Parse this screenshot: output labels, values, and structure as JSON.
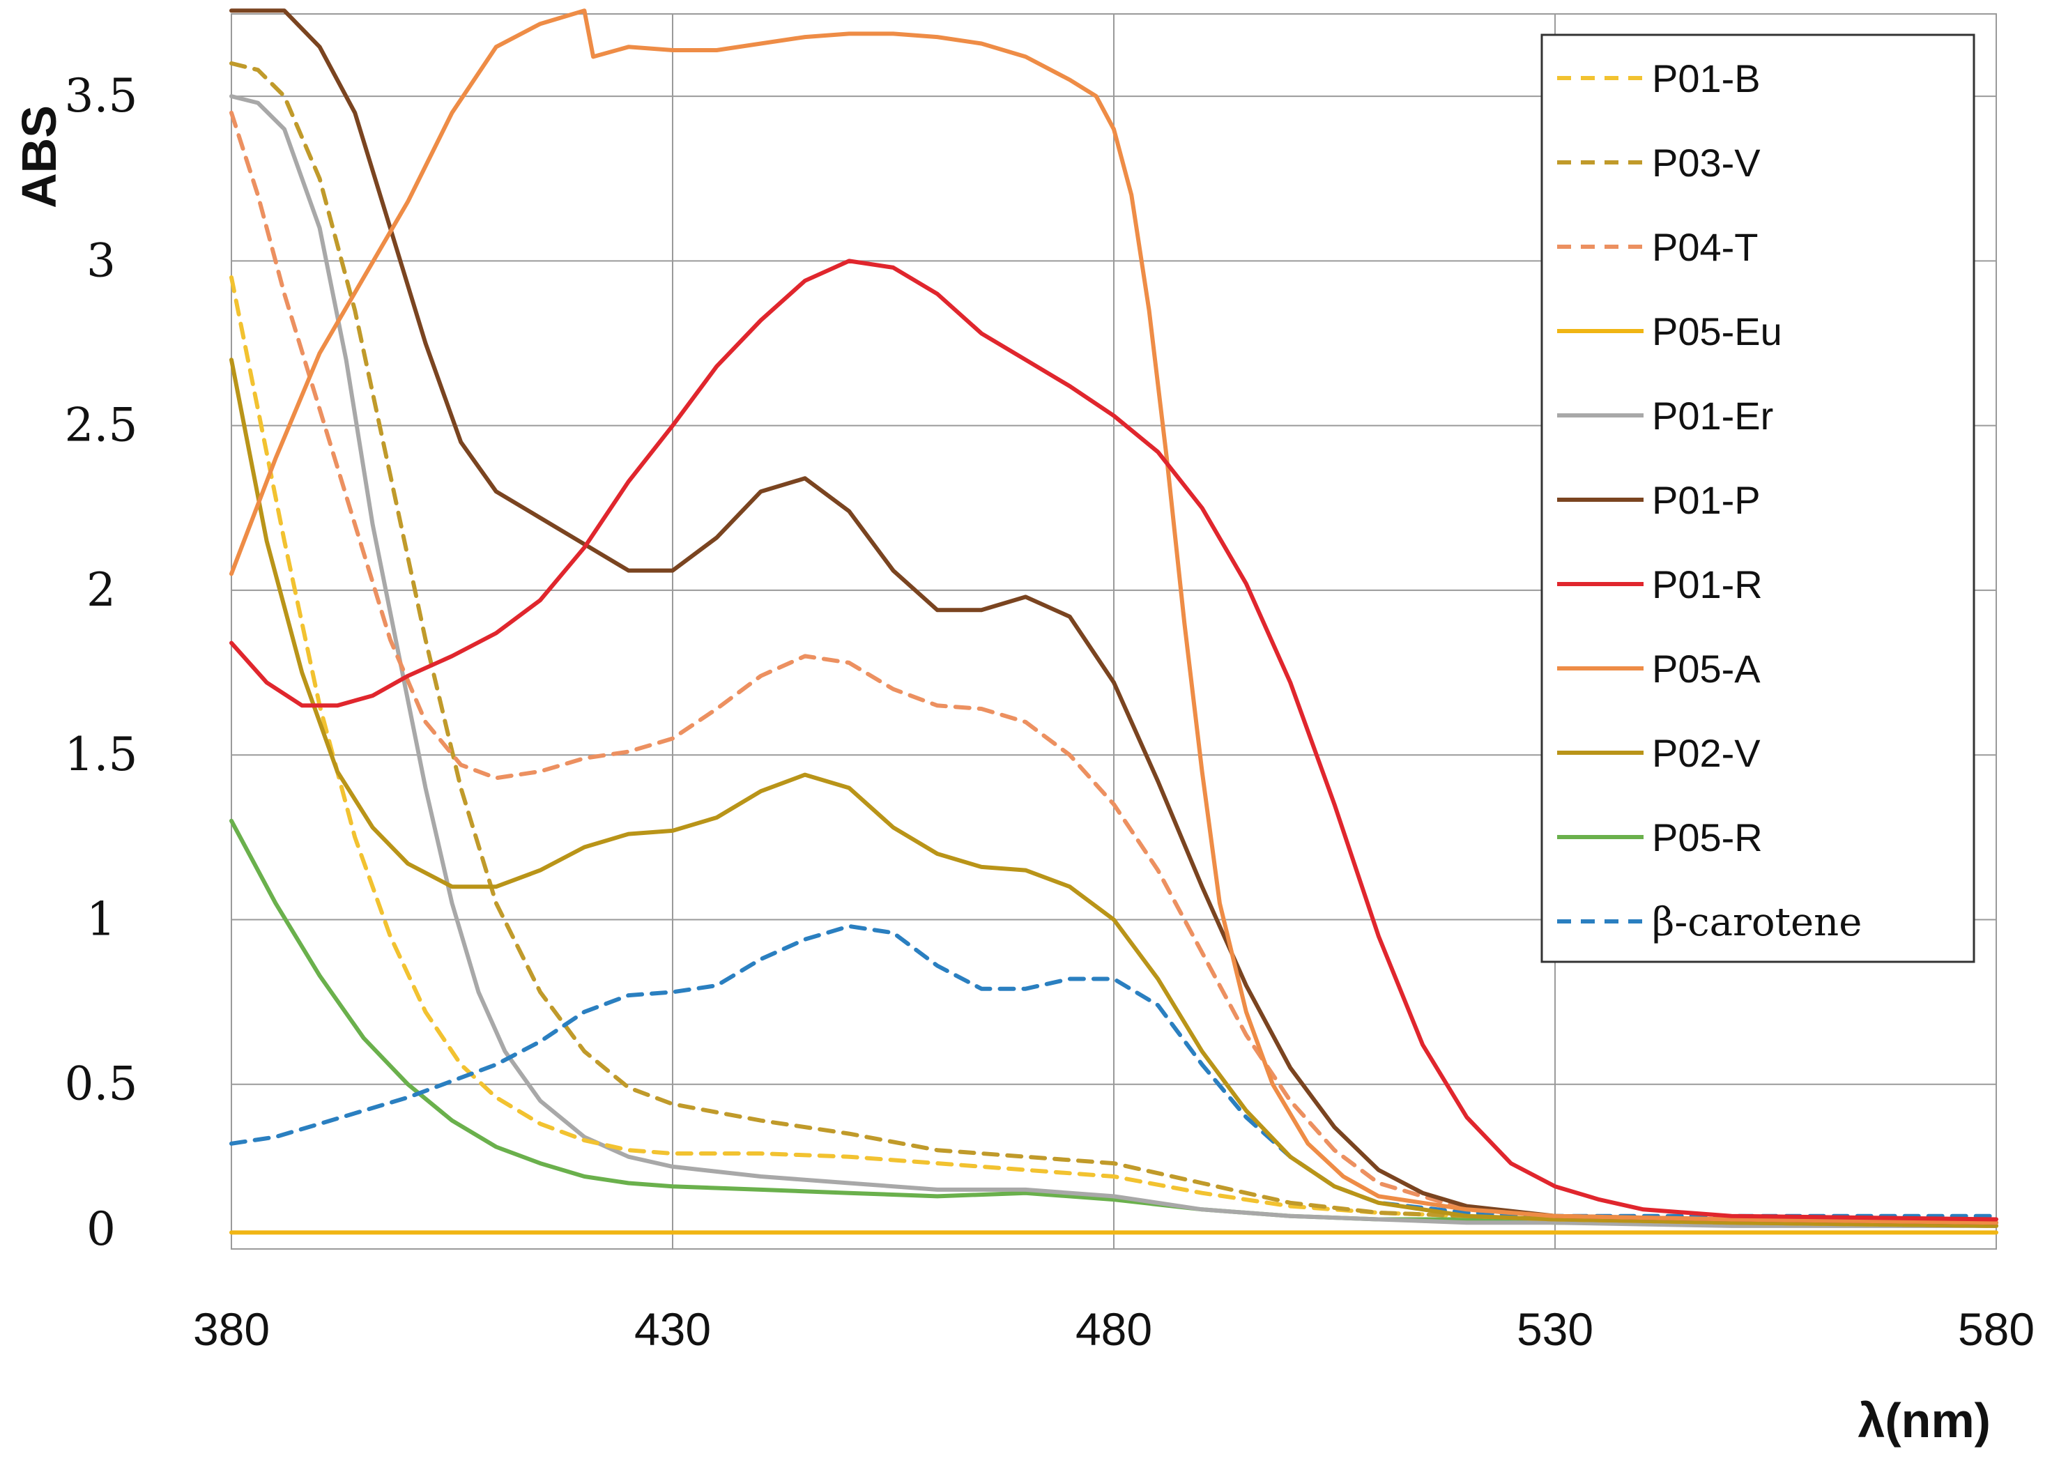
{
  "chart_data": {
    "type": "line",
    "title": "",
    "xlabel": "λ(nm)",
    "ylabel": "ABS",
    "xlim": [
      380,
      580
    ],
    "ylim": [
      0,
      3.75
    ],
    "x_ticks": [
      "380",
      "430",
      "480",
      "530",
      "580"
    ],
    "y_ticks": [
      "0",
      "0.5",
      "1",
      "1.5",
      "2",
      "2.5",
      "3",
      "3.5"
    ],
    "grid": true,
    "legend_position": "top-right",
    "series": [
      {
        "name": "P01-B",
        "color": "#f2c230",
        "dash": true,
        "points": [
          [
            380,
            2.95
          ],
          [
            383,
            2.55
          ],
          [
            386,
            2.15
          ],
          [
            390,
            1.65
          ],
          [
            394,
            1.25
          ],
          [
            398,
            0.95
          ],
          [
            402,
            0.72
          ],
          [
            406,
            0.56
          ],
          [
            410,
            0.46
          ],
          [
            415,
            0.38
          ],
          [
            420,
            0.33
          ],
          [
            425,
            0.3
          ],
          [
            430,
            0.29
          ],
          [
            440,
            0.29
          ],
          [
            450,
            0.28
          ],
          [
            460,
            0.26
          ],
          [
            470,
            0.24
          ],
          [
            480,
            0.22
          ],
          [
            490,
            0.17
          ],
          [
            500,
            0.13
          ],
          [
            510,
            0.11
          ],
          [
            520,
            0.1
          ],
          [
            530,
            0.09
          ],
          [
            550,
            0.08
          ],
          [
            580,
            0.07
          ]
        ]
      },
      {
        "name": "P03-V",
        "color": "#c09a2a",
        "dash": true,
        "points": [
          [
            380,
            3.6
          ],
          [
            383,
            3.58
          ],
          [
            386,
            3.5
          ],
          [
            390,
            3.25
          ],
          [
            394,
            2.85
          ],
          [
            398,
            2.35
          ],
          [
            402,
            1.85
          ],
          [
            406,
            1.4
          ],
          [
            410,
            1.05
          ],
          [
            415,
            0.78
          ],
          [
            420,
            0.6
          ],
          [
            425,
            0.49
          ],
          [
            430,
            0.44
          ],
          [
            440,
            0.39
          ],
          [
            450,
            0.35
          ],
          [
            460,
            0.3
          ],
          [
            470,
            0.28
          ],
          [
            480,
            0.26
          ],
          [
            490,
            0.2
          ],
          [
            500,
            0.14
          ],
          [
            510,
            0.11
          ],
          [
            520,
            0.1
          ],
          [
            530,
            0.09
          ],
          [
            550,
            0.08
          ],
          [
            580,
            0.07
          ]
        ]
      },
      {
        "name": "P04-T",
        "color": "#ec9060",
        "dash": true,
        "points": [
          [
            380,
            3.45
          ],
          [
            383,
            3.2
          ],
          [
            386,
            2.9
          ],
          [
            390,
            2.55
          ],
          [
            394,
            2.2
          ],
          [
            398,
            1.85
          ],
          [
            402,
            1.6
          ],
          [
            406,
            1.47
          ],
          [
            410,
            1.43
          ],
          [
            415,
            1.45
          ],
          [
            420,
            1.49
          ],
          [
            425,
            1.51
          ],
          [
            430,
            1.55
          ],
          [
            435,
            1.64
          ],
          [
            440,
            1.74
          ],
          [
            445,
            1.8
          ],
          [
            450,
            1.78
          ],
          [
            455,
            1.7
          ],
          [
            460,
            1.65
          ],
          [
            465,
            1.64
          ],
          [
            470,
            1.6
          ],
          [
            475,
            1.5
          ],
          [
            480,
            1.35
          ],
          [
            485,
            1.15
          ],
          [
            490,
            0.9
          ],
          [
            495,
            0.65
          ],
          [
            500,
            0.45
          ],
          [
            505,
            0.3
          ],
          [
            510,
            0.2
          ],
          [
            520,
            0.12
          ],
          [
            530,
            0.1
          ],
          [
            550,
            0.09
          ],
          [
            580,
            0.08
          ]
        ]
      },
      {
        "name": "P05-Eu",
        "color": "#f0b514",
        "dash": false,
        "points": [
          [
            380,
            0.05
          ],
          [
            580,
            0.05
          ]
        ]
      },
      {
        "name": "P01-Er",
        "color": "#a8a8a8",
        "dash": false,
        "points": [
          [
            380,
            3.5
          ],
          [
            383,
            3.48
          ],
          [
            386,
            3.4
          ],
          [
            390,
            3.1
          ],
          [
            393,
            2.7
          ],
          [
            396,
            2.2
          ],
          [
            399,
            1.8
          ],
          [
            402,
            1.4
          ],
          [
            405,
            1.05
          ],
          [
            408,
            0.78
          ],
          [
            411,
            0.6
          ],
          [
            415,
            0.45
          ],
          [
            420,
            0.34
          ],
          [
            425,
            0.28
          ],
          [
            430,
            0.25
          ],
          [
            440,
            0.22
          ],
          [
            450,
            0.2
          ],
          [
            460,
            0.18
          ],
          [
            470,
            0.18
          ],
          [
            480,
            0.16
          ],
          [
            490,
            0.12
          ],
          [
            500,
            0.1
          ],
          [
            510,
            0.09
          ],
          [
            520,
            0.08
          ],
          [
            530,
            0.08
          ],
          [
            550,
            0.07
          ],
          [
            580,
            0.07
          ]
        ]
      },
      {
        "name": "P01-P",
        "color": "#7a4420",
        "dash": false,
        "points": [
          [
            380,
            3.76
          ],
          [
            386,
            3.76
          ],
          [
            390,
            3.65
          ],
          [
            394,
            3.45
          ],
          [
            398,
            3.1
          ],
          [
            402,
            2.75
          ],
          [
            406,
            2.45
          ],
          [
            410,
            2.3
          ],
          [
            415,
            2.22
          ],
          [
            420,
            2.14
          ],
          [
            425,
            2.06
          ],
          [
            430,
            2.06
          ],
          [
            435,
            2.16
          ],
          [
            440,
            2.3
          ],
          [
            445,
            2.34
          ],
          [
            450,
            2.24
          ],
          [
            455,
            2.06
          ],
          [
            460,
            1.94
          ],
          [
            465,
            1.94
          ],
          [
            470,
            1.98
          ],
          [
            475,
            1.92
          ],
          [
            480,
            1.72
          ],
          [
            485,
            1.42
          ],
          [
            490,
            1.1
          ],
          [
            495,
            0.8
          ],
          [
            500,
            0.55
          ],
          [
            505,
            0.37
          ],
          [
            510,
            0.24
          ],
          [
            515,
            0.17
          ],
          [
            520,
            0.13
          ],
          [
            530,
            0.1
          ],
          [
            550,
            0.09
          ],
          [
            580,
            0.08
          ]
        ]
      },
      {
        "name": "P01-R",
        "color": "#e0262d",
        "dash": false,
        "points": [
          [
            380,
            1.84
          ],
          [
            384,
            1.72
          ],
          [
            388,
            1.65
          ],
          [
            392,
            1.65
          ],
          [
            396,
            1.68
          ],
          [
            400,
            1.74
          ],
          [
            405,
            1.8
          ],
          [
            410,
            1.87
          ],
          [
            415,
            1.97
          ],
          [
            420,
            2.13
          ],
          [
            425,
            2.33
          ],
          [
            430,
            2.5
          ],
          [
            435,
            2.68
          ],
          [
            440,
            2.82
          ],
          [
            445,
            2.94
          ],
          [
            450,
            3.0
          ],
          [
            455,
            2.98
          ],
          [
            460,
            2.9
          ],
          [
            465,
            2.78
          ],
          [
            470,
            2.7
          ],
          [
            475,
            2.62
          ],
          [
            480,
            2.53
          ],
          [
            485,
            2.42
          ],
          [
            490,
            2.25
          ],
          [
            495,
            2.02
          ],
          [
            500,
            1.72
          ],
          [
            505,
            1.35
          ],
          [
            510,
            0.95
          ],
          [
            515,
            0.62
          ],
          [
            520,
            0.4
          ],
          [
            525,
            0.26
          ],
          [
            530,
            0.19
          ],
          [
            535,
            0.15
          ],
          [
            540,
            0.12
          ],
          [
            550,
            0.1
          ],
          [
            580,
            0.09
          ]
        ]
      },
      {
        "name": "P05-A",
        "color": "#ee8c46",
        "dash": false,
        "points": [
          [
            380,
            2.05
          ],
          [
            385,
            2.4
          ],
          [
            390,
            2.72
          ],
          [
            395,
            2.95
          ],
          [
            400,
            3.18
          ],
          [
            405,
            3.45
          ],
          [
            410,
            3.65
          ],
          [
            415,
            3.72
          ],
          [
            420,
            3.76
          ],
          [
            421,
            3.62
          ],
          [
            425,
            3.65
          ],
          [
            430,
            3.64
          ],
          [
            435,
            3.64
          ],
          [
            440,
            3.66
          ],
          [
            445,
            3.68
          ],
          [
            450,
            3.69
          ],
          [
            455,
            3.69
          ],
          [
            460,
            3.68
          ],
          [
            465,
            3.66
          ],
          [
            470,
            3.62
          ],
          [
            475,
            3.55
          ],
          [
            478,
            3.5
          ],
          [
            480,
            3.4
          ],
          [
            482,
            3.2
          ],
          [
            484,
            2.85
          ],
          [
            486,
            2.4
          ],
          [
            488,
            1.9
          ],
          [
            490,
            1.45
          ],
          [
            492,
            1.05
          ],
          [
            495,
            0.72
          ],
          [
            498,
            0.5
          ],
          [
            502,
            0.32
          ],
          [
            506,
            0.22
          ],
          [
            510,
            0.16
          ],
          [
            520,
            0.12
          ],
          [
            530,
            0.1
          ],
          [
            550,
            0.09
          ],
          [
            580,
            0.08
          ]
        ]
      },
      {
        "name": "P02-V",
        "color": "#b99418",
        "dash": false,
        "points": [
          [
            380,
            2.7
          ],
          [
            384,
            2.15
          ],
          [
            388,
            1.75
          ],
          [
            392,
            1.45
          ],
          [
            396,
            1.28
          ],
          [
            400,
            1.17
          ],
          [
            405,
            1.1
          ],
          [
            410,
            1.1
          ],
          [
            415,
            1.15
          ],
          [
            420,
            1.22
          ],
          [
            425,
            1.26
          ],
          [
            430,
            1.27
          ],
          [
            435,
            1.31
          ],
          [
            440,
            1.39
          ],
          [
            445,
            1.44
          ],
          [
            450,
            1.4
          ],
          [
            455,
            1.28
          ],
          [
            460,
            1.2
          ],
          [
            465,
            1.16
          ],
          [
            470,
            1.15
          ],
          [
            475,
            1.1
          ],
          [
            480,
            1.0
          ],
          [
            485,
            0.82
          ],
          [
            490,
            0.6
          ],
          [
            495,
            0.42
          ],
          [
            500,
            0.28
          ],
          [
            505,
            0.19
          ],
          [
            510,
            0.14
          ],
          [
            520,
            0.1
          ],
          [
            530,
            0.09
          ],
          [
            550,
            0.08
          ],
          [
            580,
            0.07
          ]
        ]
      },
      {
        "name": "P05-R",
        "color": "#6ab04c",
        "dash": false,
        "points": [
          [
            380,
            1.3
          ],
          [
            385,
            1.05
          ],
          [
            390,
            0.83
          ],
          [
            395,
            0.64
          ],
          [
            400,
            0.5
          ],
          [
            405,
            0.39
          ],
          [
            410,
            0.31
          ],
          [
            415,
            0.26
          ],
          [
            420,
            0.22
          ],
          [
            425,
            0.2
          ],
          [
            430,
            0.19
          ],
          [
            440,
            0.18
          ],
          [
            450,
            0.17
          ],
          [
            460,
            0.16
          ],
          [
            470,
            0.17
          ],
          [
            480,
            0.15
          ],
          [
            490,
            0.12
          ],
          [
            500,
            0.1
          ],
          [
            510,
            0.09
          ],
          [
            520,
            0.09
          ],
          [
            530,
            0.08
          ],
          [
            550,
            0.08
          ],
          [
            580,
            0.07
          ]
        ]
      },
      {
        "name": "β-carotene",
        "color": "#2a7fc0",
        "dash": true,
        "points": [
          [
            380,
            0.32
          ],
          [
            385,
            0.34
          ],
          [
            390,
            0.38
          ],
          [
            395,
            0.42
          ],
          [
            400,
            0.46
          ],
          [
            405,
            0.51
          ],
          [
            410,
            0.56
          ],
          [
            415,
            0.63
          ],
          [
            420,
            0.72
          ],
          [
            425,
            0.77
          ],
          [
            430,
            0.78
          ],
          [
            435,
            0.8
          ],
          [
            440,
            0.88
          ],
          [
            445,
            0.94
          ],
          [
            450,
            0.98
          ],
          [
            455,
            0.96
          ],
          [
            460,
            0.86
          ],
          [
            465,
            0.79
          ],
          [
            470,
            0.79
          ],
          [
            475,
            0.82
          ],
          [
            480,
            0.82
          ],
          [
            485,
            0.74
          ],
          [
            490,
            0.56
          ],
          [
            495,
            0.4
          ],
          [
            500,
            0.28
          ],
          [
            505,
            0.19
          ],
          [
            510,
            0.14
          ],
          [
            520,
            0.11
          ],
          [
            530,
            0.1
          ],
          [
            550,
            0.1
          ],
          [
            580,
            0.1
          ]
        ]
      }
    ]
  }
}
